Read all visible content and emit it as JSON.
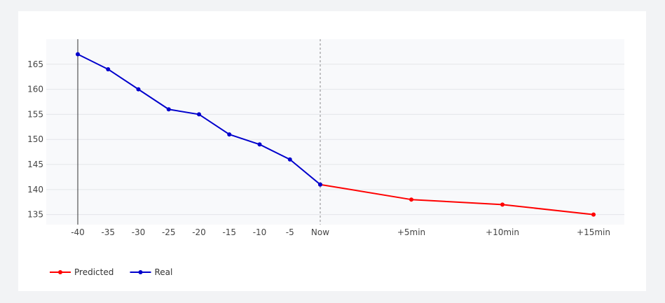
{
  "chart_data": {
    "type": "line",
    "title": "",
    "xlabel": "",
    "ylabel": "",
    "x_ticks": [
      "-40",
      "-35",
      "-30",
      "-25",
      "-20",
      "-15",
      "-10",
      "-5",
      "Now",
      "+5min",
      "+10min",
      "+15min"
    ],
    "x_minutes": [
      -40,
      -35,
      -30,
      -25,
      -20,
      -15,
      -10,
      -5,
      0,
      5,
      10,
      15
    ],
    "ylim": [
      133,
      170
    ],
    "y_ticks": [
      135,
      140,
      145,
      150,
      155,
      160,
      165
    ],
    "grid": true,
    "legend": "bottom-left",
    "now_marker": "Now",
    "series": [
      {
        "name": "Predicted",
        "color": "#ff0000",
        "x": [
          0,
          5,
          10,
          15
        ],
        "values": [
          141,
          138,
          137,
          135
        ]
      },
      {
        "name": "Real",
        "color": "#0000cc",
        "x": [
          -40,
          -35,
          -30,
          -25,
          -20,
          -15,
          -10,
          -5,
          0
        ],
        "values": [
          167,
          164,
          160,
          156,
          155,
          151,
          149,
          146,
          141
        ]
      }
    ]
  }
}
